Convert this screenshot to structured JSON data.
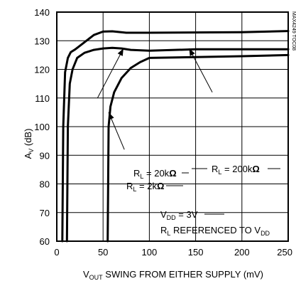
{
  "chart_data": {
    "type": "line",
    "title": "",
    "xlabel": {
      "main": "V",
      "sub": "OUT",
      "rest": " SWING FROM EITHER SUPPLY (mV)"
    },
    "ylabel": {
      "main": "A",
      "sub": "V",
      "rest": " (dB)"
    },
    "xlim": [
      0,
      250
    ],
    "ylim": [
      60,
      140
    ],
    "x_ticks": [
      0,
      50,
      100,
      150,
      200,
      250
    ],
    "y_ticks": [
      60,
      70,
      80,
      90,
      100,
      110,
      120,
      130,
      140
    ],
    "grid": true,
    "series": [
      {
        "name": "RL = 200kΩ",
        "points": [
          [
            6,
            60
          ],
          [
            7,
            100
          ],
          [
            9,
            119
          ],
          [
            12,
            124
          ],
          [
            15,
            126
          ],
          [
            20,
            127
          ],
          [
            30,
            129.5
          ],
          [
            40,
            132
          ],
          [
            50,
            133.2
          ],
          [
            60,
            133.3
          ],
          [
            75,
            132.8
          ],
          [
            100,
            132.8
          ],
          [
            150,
            132.9
          ],
          [
            200,
            133
          ],
          [
            250,
            133.4
          ]
        ]
      },
      {
        "name": "RL = 20kΩ",
        "points": [
          [
            11,
            60
          ],
          [
            12,
            100
          ],
          [
            14,
            115
          ],
          [
            17,
            120
          ],
          [
            22,
            124
          ],
          [
            30,
            125.8
          ],
          [
            40,
            126.8
          ],
          [
            50,
            127.3
          ],
          [
            60,
            127.5
          ],
          [
            70,
            127.3
          ],
          [
            80,
            126.8
          ],
          [
            100,
            126.5
          ],
          [
            150,
            127
          ],
          [
            200,
            127
          ],
          [
            250,
            127
          ]
        ]
      },
      {
        "name": "RL = 2kΩ",
        "points": [
          [
            55,
            60
          ],
          [
            56,
            100
          ],
          [
            58,
            107
          ],
          [
            62,
            112
          ],
          [
            70,
            117
          ],
          [
            80,
            120.5
          ],
          [
            90,
            122.5
          ],
          [
            100,
            124
          ],
          [
            150,
            124.3
          ],
          [
            200,
            124.6
          ],
          [
            250,
            125
          ]
        ]
      }
    ],
    "annotations": [
      {
        "id": "rl20k",
        "main": "R",
        "sub": "L",
        "rest": " = 20k",
        "unit": "Ω",
        "anchor": [
          44,
          110
        ],
        "arrow_to": [
          72,
          127.3
        ]
      },
      {
        "id": "rl200k",
        "main": "R",
        "sub": "L",
        "rest": " = 200k",
        "unit": "Ω",
        "anchor": [
          168,
          112
        ],
        "arrow_to": [
          143,
          127.3
        ]
      },
      {
        "id": "rl2k",
        "main": "R",
        "sub": "L",
        "rest": " = 2k",
        "unit": "Ω",
        "anchor": [
          73,
          92
        ],
        "arrow_to": [
          56,
          105
        ]
      },
      {
        "id": "vdd",
        "lines": [
          {
            "main": "V",
            "sub": "DD",
            "rest": " = 3V"
          },
          {
            "main": "R",
            "sub": "L",
            "rest": " REFERENCED TO V",
            "sub2": "DD"
          }
        ]
      }
    ],
    "code": "MAX4249 TOC08"
  }
}
